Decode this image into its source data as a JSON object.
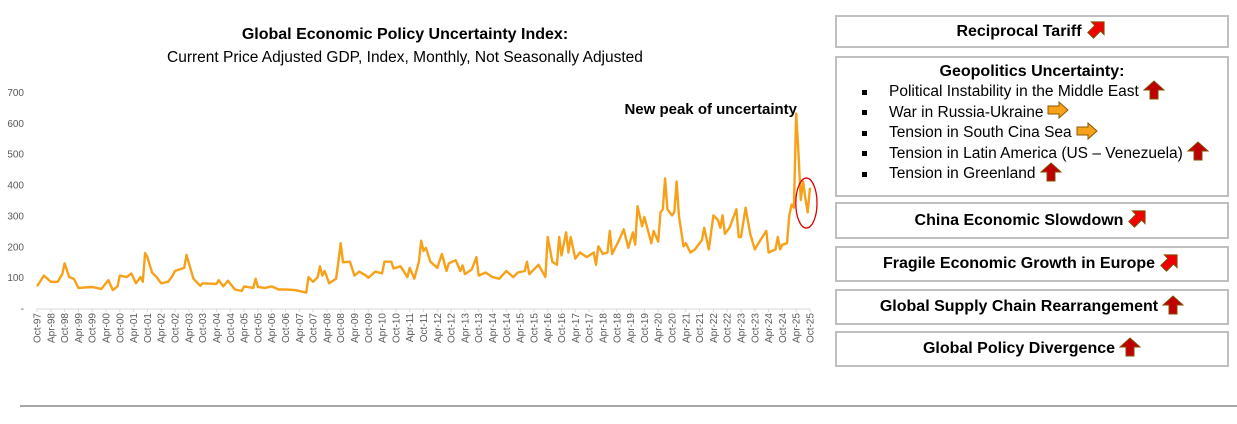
{
  "colors": {
    "series": "#F7A11A",
    "highlight": "#E00000",
    "arrow_up": "#C00000",
    "arrow_diag": "#F00000",
    "arrow_right": "#F7A11A"
  },
  "chart_data": {
    "type": "line",
    "title": "Global Economic Policy Uncertainty Index:",
    "subtitle": "Current Price Adjusted GDP, Index, Monthly, Not Seasonally Adjusted",
    "annotation": "New peak of uncertainty",
    "highlight_range": [
      "Jun-25",
      "Oct-25"
    ],
    "ylim": [
      0,
      700
    ],
    "yticks": [
      "-",
      "100",
      "200",
      "300",
      "400",
      "500",
      "600",
      "700"
    ],
    "grid": false,
    "xticks": [
      "Oct-97",
      "Apr-98",
      "Oct-98",
      "Apr-99",
      "Oct-99",
      "Apr-00",
      "Oct-00",
      "Apr-01",
      "Oct-01",
      "Apr-02",
      "Oct-02",
      "Apr-03",
      "Oct-03",
      "Apr-04",
      "Oct-04",
      "Apr-05",
      "Oct-05",
      "Apr-06",
      "Oct-06",
      "Apr-07",
      "Oct-07",
      "Apr-08",
      "Oct-08",
      "Apr-09",
      "Oct-09",
      "Apr-10",
      "Oct-10",
      "Apr-11",
      "Oct-11",
      "Apr-12",
      "Oct-12",
      "Apr-13",
      "Oct-13",
      "Apr-14",
      "Oct-14",
      "Apr-15",
      "Oct-15",
      "Apr-16",
      "Oct-16",
      "Apr-17",
      "Oct-17",
      "Apr-18",
      "Oct-18",
      "Apr-19",
      "Oct-19",
      "Apr-20",
      "Oct-20",
      "Apr-21",
      "Oct-21",
      "Apr-22",
      "Oct-22",
      "Apr-23",
      "Oct-23",
      "Apr-24",
      "Oct-24",
      "Apr-25",
      "Oct-25"
    ],
    "points": [
      [
        "Oct-97",
        70
      ],
      [
        "Jan-98",
        105
      ],
      [
        "Apr-98",
        85
      ],
      [
        "Jul-98",
        85
      ],
      [
        "Sep-98",
        110
      ],
      [
        "Oct-98",
        145
      ],
      [
        "Dec-98",
        100
      ],
      [
        "Feb-99",
        95
      ],
      [
        "Apr-99",
        65
      ],
      [
        "Oct-99",
        68
      ],
      [
        "Feb-00",
        62
      ],
      [
        "May-00",
        90
      ],
      [
        "Jul-00",
        58
      ],
      [
        "Sep-00",
        70
      ],
      [
        "Oct-00",
        105
      ],
      [
        "Jan-01",
        100
      ],
      [
        "Mar-01",
        112
      ],
      [
        "May-01",
        80
      ],
      [
        "Jul-01",
        100
      ],
      [
        "Aug-01",
        85
      ],
      [
        "Sep-01",
        178
      ],
      [
        "Oct-01",
        165
      ],
      [
        "Dec-01",
        115
      ],
      [
        "Feb-02",
        100
      ],
      [
        "Apr-02",
        80
      ],
      [
        "Jul-02",
        85
      ],
      [
        "Sep-02",
        105
      ],
      [
        "Oct-02",
        120
      ],
      [
        "Feb-03",
        130
      ],
      [
        "Mar-03",
        172
      ],
      [
        "Jun-03",
        95
      ],
      [
        "Sep-03",
        72
      ],
      [
        "Oct-03",
        80
      ],
      [
        "Apr-04",
        78
      ],
      [
        "May-04",
        90
      ],
      [
        "Jul-04",
        70
      ],
      [
        "Sep-04",
        88
      ],
      [
        "Dec-04",
        60
      ],
      [
        "Mar-05",
        55
      ],
      [
        "Apr-05",
        70
      ],
      [
        "Aug-05",
        65
      ],
      [
        "Sep-05",
        95
      ],
      [
        "Oct-05",
        68
      ],
      [
        "Jan-06",
        65
      ],
      [
        "Apr-06",
        70
      ],
      [
        "Jul-06",
        60
      ],
      [
        "Oct-06",
        60
      ],
      [
        "Feb-07",
        58
      ],
      [
        "Jul-07",
        50
      ],
      [
        "Aug-07",
        100
      ],
      [
        "Oct-07",
        85
      ],
      [
        "Dec-07",
        100
      ],
      [
        "Jan-08",
        135
      ],
      [
        "Feb-08",
        105
      ],
      [
        "Mar-08",
        120
      ],
      [
        "May-08",
        80
      ],
      [
        "Aug-08",
        95
      ],
      [
        "Sep-08",
        150
      ],
      [
        "Oct-08",
        210
      ],
      [
        "Nov-08",
        148
      ],
      [
        "Feb-09",
        150
      ],
      [
        "Apr-09",
        105
      ],
      [
        "Jun-09",
        118
      ],
      [
        "Sep-09",
        105
      ],
      [
        "Oct-09",
        98
      ],
      [
        "Jan-10",
        118
      ],
      [
        "Apr-10",
        112
      ],
      [
        "May-10",
        150
      ],
      [
        "Aug-10",
        150
      ],
      [
        "Sep-10",
        128
      ],
      [
        "Dec-10",
        135
      ],
      [
        "Mar-11",
        100
      ],
      [
        "Apr-11",
        130
      ],
      [
        "Jun-11",
        95
      ],
      [
        "Aug-11",
        150
      ],
      [
        "Sep-11",
        218
      ],
      [
        "Oct-11",
        185
      ],
      [
        "Nov-11",
        195
      ],
      [
        "Jan-12",
        150
      ],
      [
        "Apr-12",
        130
      ],
      [
        "Jun-12",
        175
      ],
      [
        "Aug-12",
        120
      ],
      [
        "Sep-12",
        145
      ],
      [
        "Dec-12",
        155
      ],
      [
        "Feb-13",
        120
      ],
      [
        "Mar-13",
        138
      ],
      [
        "Apr-13",
        110
      ],
      [
        "Jul-13",
        125
      ],
      [
        "Sep-13",
        165
      ],
      [
        "Oct-13",
        105
      ],
      [
        "Jan-14",
        115
      ],
      [
        "Apr-14",
        100
      ],
      [
        "Jul-14",
        95
      ],
      [
        "Oct-14",
        120
      ],
      [
        "Jan-15",
        100
      ],
      [
        "Mar-15",
        115
      ],
      [
        "Jun-15",
        120
      ],
      [
        "Jul-15",
        150
      ],
      [
        "Aug-15",
        110
      ],
      [
        "Dec-15",
        140
      ],
      [
        "Mar-16",
        100
      ],
      [
        "Apr-16",
        230
      ],
      [
        "Jun-16",
        150
      ],
      [
        "Aug-16",
        140
      ],
      [
        "Sep-16",
        230
      ],
      [
        "Oct-16",
        170
      ],
      [
        "Dec-16",
        245
      ],
      [
        "Jan-17",
        180
      ],
      [
        "Feb-17",
        230
      ],
      [
        "Apr-17",
        160
      ],
      [
        "Jun-17",
        180
      ],
      [
        "Sep-17",
        165
      ],
      [
        "Dec-17",
        180
      ],
      [
        "Jan-18",
        140
      ],
      [
        "Feb-18",
        200
      ],
      [
        "Apr-18",
        175
      ],
      [
        "Jun-18",
        180
      ],
      [
        "Jul-18",
        250
      ],
      [
        "Aug-18",
        175
      ],
      [
        "Nov-18",
        220
      ],
      [
        "Jan-19",
        255
      ],
      [
        "Mar-19",
        195
      ],
      [
        "May-19",
        245
      ],
      [
        "Jun-19",
        205
      ],
      [
        "Jul-19",
        330
      ],
      [
        "Sep-19",
        265
      ],
      [
        "Oct-19",
        295
      ],
      [
        "Jan-20",
        210
      ],
      [
        "Feb-20",
        250
      ],
      [
        "Apr-20",
        215
      ],
      [
        "May-20",
        310
      ],
      [
        "Jun-20",
        320
      ],
      [
        "Jul-20",
        420
      ],
      [
        "Aug-20",
        320
      ],
      [
        "Oct-20",
        300
      ],
      [
        "Nov-20",
        310
      ],
      [
        "Dec-20",
        410
      ],
      [
        "Jan-21",
        300
      ],
      [
        "Mar-21",
        200
      ],
      [
        "Apr-21",
        210
      ],
      [
        "Jun-21",
        180
      ],
      [
        "Aug-21",
        190
      ],
      [
        "Nov-21",
        220
      ],
      [
        "Dec-21",
        260
      ],
      [
        "Feb-22",
        190
      ],
      [
        "Apr-22",
        300
      ],
      [
        "Jun-22",
        285
      ],
      [
        "Jul-22",
        260
      ],
      [
        "Aug-22",
        300
      ],
      [
        "Sep-22",
        240
      ],
      [
        "Nov-22",
        260
      ],
      [
        "Feb-23",
        320
      ],
      [
        "Mar-23",
        230
      ],
      [
        "Apr-23",
        230
      ],
      [
        "Jun-23",
        325
      ],
      [
        "Aug-23",
        240
      ],
      [
        "Oct-23",
        190
      ],
      [
        "Dec-23",
        215
      ],
      [
        "Mar-24",
        250
      ],
      [
        "Apr-24",
        180
      ],
      [
        "Jul-24",
        190
      ],
      [
        "Aug-24",
        230
      ],
      [
        "Sep-24",
        190
      ],
      [
        "Oct-24",
        205
      ],
      [
        "Dec-24",
        210
      ],
      [
        "Jan-25",
        300
      ],
      [
        "Feb-25",
        335
      ],
      [
        "Mar-25",
        325
      ],
      [
        "Apr-25",
        630
      ],
      [
        "May-25",
        500
      ],
      [
        "Jun-25",
        350
      ],
      [
        "Jul-25",
        410
      ],
      [
        "Aug-25",
        355
      ],
      [
        "Sep-25",
        310
      ],
      [
        "Oct-25",
        390
      ]
    ]
  },
  "panel": {
    "reciprocal": {
      "label": "Reciprocal Tariff",
      "arrow": "diagonal-up-right"
    },
    "geopolitics": {
      "heading": "Geopolitics Uncertainty:",
      "items": [
        {
          "label": "Political Instability in the Middle East",
          "arrow": "up"
        },
        {
          "label": "War in Russia-Ukraine",
          "arrow": "right"
        },
        {
          "label": "Tension in South Cina Sea",
          "arrow": "right"
        },
        {
          "label": "Tension in Latin America (US – Venezuela)",
          "arrow": "up"
        },
        {
          "label": "Tension in Greenland",
          "arrow": "up"
        }
      ]
    },
    "china": {
      "label": "China Economic Slowdown",
      "arrow": "diagonal-up-right"
    },
    "europe": {
      "label": "Fragile Economic Growth in Europe",
      "arrow": "diagonal-up-right"
    },
    "supply": {
      "label": "Global Supply Chain Rearrangement",
      "arrow": "up"
    },
    "policy": {
      "label": "Global Policy Divergence",
      "arrow": "up"
    }
  }
}
